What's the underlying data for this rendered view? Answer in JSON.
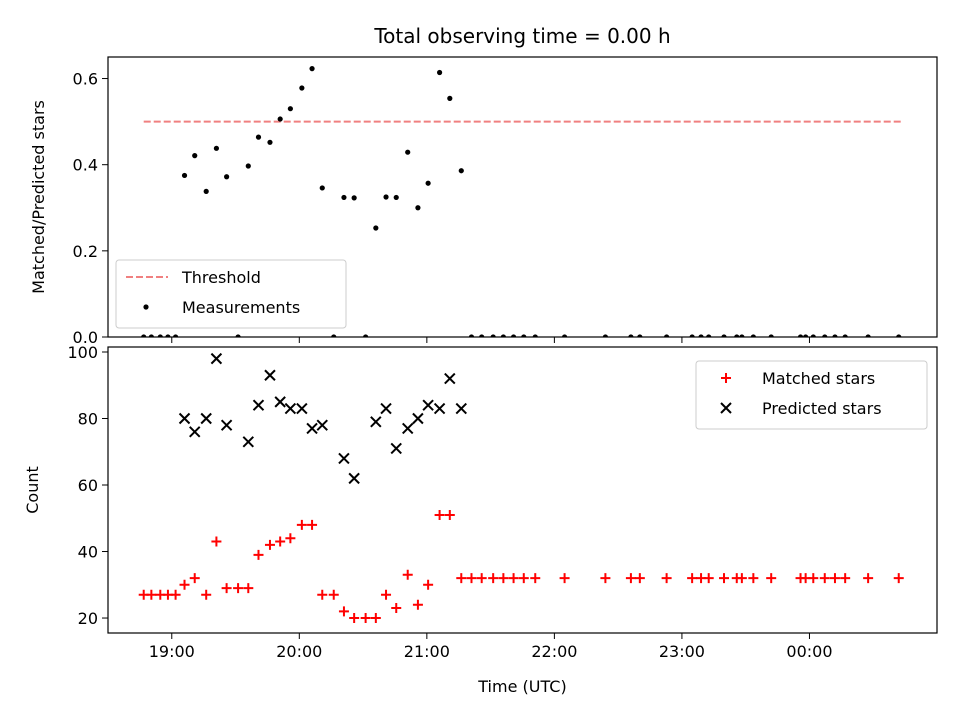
{
  "chart_data": [
    {
      "type": "scatter",
      "title": "Total observing time = 0.00 h",
      "xlabel": "",
      "ylabel": "Matched/Predicted stars",
      "xlim": [
        18.5,
        25.0
      ],
      "ylim": [
        0,
        0.65
      ],
      "x_ticks": [
        19,
        20,
        21,
        22,
        23,
        24
      ],
      "y_ticks": [
        0.0,
        0.2,
        0.4,
        0.6
      ],
      "y_tick_labels": [
        "0.0",
        "0.2",
        "0.4",
        "0.6"
      ],
      "legend": {
        "placement": "lower-left",
        "entries": [
          "Threshold",
          "Measurements"
        ]
      },
      "series": [
        {
          "name": "Threshold",
          "kind": "dashed-line",
          "color": "#f08080",
          "x": [
            18.78,
            24.73
          ],
          "y": [
            0.5,
            0.5
          ]
        },
        {
          "name": "Measurements",
          "kind": "dots",
          "color": "#000000",
          "x": [
            18.78,
            18.84,
            18.91,
            18.97,
            19.03,
            19.1,
            19.18,
            19.27,
            19.35,
            19.43,
            19.52,
            19.6,
            19.68,
            19.77,
            19.85,
            19.93,
            20.02,
            20.1,
            20.18,
            20.27,
            20.35,
            20.43,
            20.52,
            20.6,
            20.68,
            20.76,
            20.85,
            20.93,
            21.01,
            21.1,
            21.18,
            21.27,
            21.35,
            21.43,
            21.52,
            21.6,
            21.68,
            21.76,
            21.85,
            22.08,
            22.4,
            22.6,
            22.67,
            22.88,
            23.08,
            23.15,
            23.21,
            23.33,
            23.43,
            23.47,
            23.56,
            23.7,
            23.93,
            23.97,
            24.03,
            24.12,
            24.2,
            24.28,
            24.46,
            24.7
          ],
          "y": [
            0,
            0,
            0,
            0,
            0,
            0.375,
            0.421,
            0.338,
            0.438,
            0.372,
            0,
            0.397,
            0.464,
            0.452,
            0.506,
            0.53,
            0.578,
            0.623,
            0.346,
            0,
            0.324,
            0.323,
            0,
            0.253,
            0.325,
            0.324,
            0.429,
            0.3,
            0.357,
            0.614,
            0.554,
            0.386,
            0,
            0,
            0,
            0,
            0,
            0,
            0,
            0,
            0,
            0,
            0,
            0,
            0,
            0,
            0,
            0,
            0,
            0,
            0,
            0,
            0,
            0,
            0,
            0,
            0,
            0,
            0,
            0
          ]
        }
      ]
    },
    {
      "type": "scatter",
      "title": "",
      "xlabel": "Time (UTC)",
      "ylabel": "Count",
      "xlim": [
        18.5,
        25.0
      ],
      "ylim": [
        15.5,
        101.5
      ],
      "x_ticks": [
        19,
        20,
        21,
        22,
        23,
        24
      ],
      "x_tick_labels": [
        "19:00",
        "20:00",
        "21:00",
        "22:00",
        "23:00",
        "00:00"
      ],
      "y_ticks": [
        20,
        40,
        60,
        80,
        100
      ],
      "y_tick_labels": [
        "20",
        "40",
        "60",
        "80",
        "100"
      ],
      "legend": {
        "placement": "upper-right",
        "entries": [
          "Matched stars",
          "Predicted stars"
        ]
      },
      "series": [
        {
          "name": "Matched stars",
          "marker": "+",
          "color": "#ff0000",
          "x": [
            18.78,
            18.84,
            18.91,
            18.97,
            19.03,
            19.1,
            19.18,
            19.27,
            19.35,
            19.43,
            19.52,
            19.6,
            19.68,
            19.77,
            19.85,
            19.93,
            20.02,
            20.1,
            20.18,
            20.27,
            20.35,
            20.43,
            20.52,
            20.6,
            20.68,
            20.76,
            20.85,
            20.93,
            21.01,
            21.1,
            21.18,
            21.27,
            21.35,
            21.43,
            21.52,
            21.6,
            21.68,
            21.76,
            21.85,
            22.08,
            22.4,
            22.6,
            22.67,
            22.88,
            23.08,
            23.15,
            23.21,
            23.33,
            23.43,
            23.47,
            23.56,
            23.7,
            23.93,
            23.97,
            24.03,
            24.12,
            24.2,
            24.28,
            24.46,
            24.7
          ],
          "y": [
            27,
            27,
            27,
            27,
            27,
            30,
            32,
            27,
            43,
            29,
            29,
            29,
            39,
            42,
            43,
            44,
            48,
            48,
            27,
            27,
            22,
            20,
            20,
            20,
            27,
            23,
            33,
            24,
            30,
            51,
            51,
            32,
            32,
            32,
            32,
            32,
            32,
            32,
            32,
            32,
            32,
            32,
            32,
            32,
            32,
            32,
            32,
            32,
            32,
            32,
            32,
            32,
            32,
            32,
            32,
            32,
            32,
            32,
            32,
            32
          ]
        },
        {
          "name": "Predicted stars",
          "marker": "x",
          "color": "#000000",
          "x": [
            19.1,
            19.18,
            19.27,
            19.35,
            19.43,
            19.6,
            19.68,
            19.77,
            19.85,
            19.93,
            20.02,
            20.1,
            20.18,
            20.35,
            20.43,
            20.6,
            20.68,
            20.76,
            20.85,
            20.93,
            21.01,
            21.1,
            21.18,
            21.27
          ],
          "y": [
            80,
            76,
            80,
            98,
            78,
            73,
            84,
            93,
            85,
            83,
            83,
            77,
            78,
            68,
            62,
            79,
            83,
            71,
            77,
            80,
            84,
            83,
            92,
            83
          ]
        }
      ]
    }
  ]
}
